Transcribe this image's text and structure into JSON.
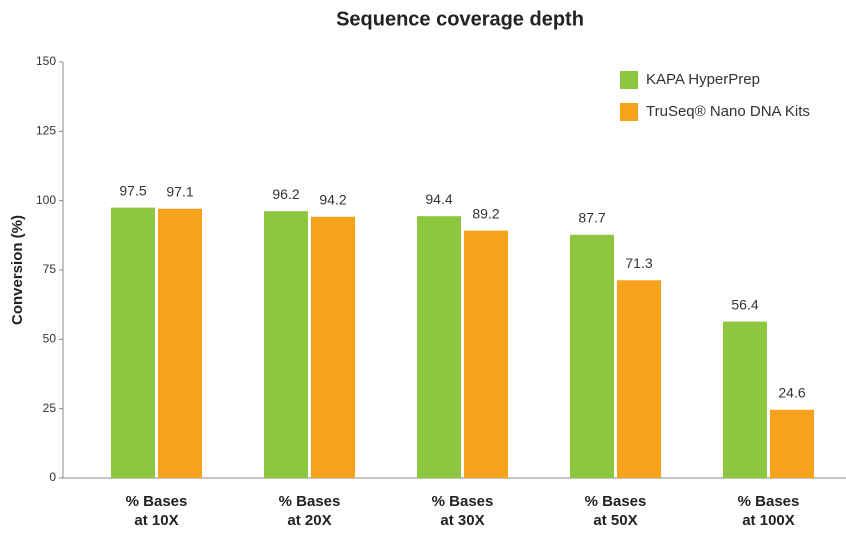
{
  "chart_data": {
    "type": "bar",
    "title": "Sequence coverage depth",
    "y_label": "Conversion (%)",
    "categories": [
      "% Bases at 10X",
      "% Bases at 20X",
      "% Bases at 30X",
      "% Bases at 50X",
      "% Bases at 100X"
    ],
    "series": [
      {
        "name": "KAPA HyperPrep",
        "color": "#8dc63f",
        "values": [
          97.5,
          96.2,
          94.4,
          87.7,
          56.4
        ]
      },
      {
        "name": "TruSeq® Nano DNA Kits",
        "color": "#f7a21b",
        "values": [
          97.1,
          94.2,
          89.2,
          71.3,
          24.6
        ]
      }
    ],
    "ylim": [
      0,
      150
    ],
    "yticks": [
      0,
      25,
      50,
      75,
      100,
      125,
      150
    ],
    "grid": false,
    "legend": "top-right"
  }
}
